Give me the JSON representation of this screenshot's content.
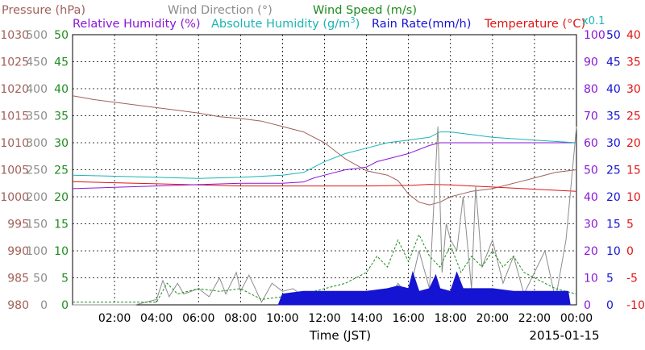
{
  "chart_data": {
    "type": "line",
    "title_parts": {
      "row1": [
        {
          "text": "Pressure (hPa)",
          "color": "#a0605a"
        },
        {
          "text": "Wind Direction (°)",
          "color": "#8c8c8c"
        },
        {
          "text": "Wind Speed (m/s)",
          "color": "#1e8c1e"
        }
      ],
      "row2": [
        {
          "text": "Relative Humidity (%)",
          "color": "#8a16d8"
        },
        {
          "text": "Absolute Humidity (g/m",
          "sup": "3",
          "tail": ")",
          "color": "#1ab4b4"
        },
        {
          "text": "Rain Rate(mm/h)",
          "color": "#1414d2"
        },
        {
          "text": "Temperature (°C)",
          "color": "#e01414"
        }
      ],
      "multiplier": {
        "text": "x0.1",
        "color": "#1ab4b4"
      }
    },
    "xlabel": "Time (JST)",
    "date": "2015-01-15",
    "x_ticks": [
      "02:00",
      "04:00",
      "06:00",
      "08:00",
      "10:00",
      "12:00",
      "14:00",
      "16:00",
      "18:00",
      "20:00",
      "22:00",
      "00:00"
    ],
    "xlim_hours": [
      0,
      24
    ],
    "grid": true,
    "axes": {
      "pressure": {
        "color": "#a0605a",
        "ticks": [
          "1030",
          "1025",
          "1020",
          "1015",
          "1010",
          "1005",
          "1000",
          "995",
          "990",
          "985",
          "980"
        ],
        "ylim": [
          980,
          1030
        ]
      },
      "wind_direction": {
        "color": "#8c8c8c",
        "ticks": [
          "500",
          "450",
          "400",
          "350",
          "300",
          "250",
          "200",
          "150",
          "100",
          "50",
          "0"
        ],
        "ylim": [
          0,
          500
        ]
      },
      "wind_speed": {
        "color": "#1e8c1e",
        "ticks": [
          "50",
          "45",
          "40",
          "35",
          "30",
          "25",
          "20",
          "15",
          "10",
          "5",
          "0"
        ],
        "ylim": [
          0,
          50
        ]
      },
      "relative_humidity": {
        "color": "#8a16d8",
        "ticks": [
          "100",
          "90",
          "80",
          "70",
          "60",
          "50",
          "40",
          "30",
          "20",
          "10",
          "0"
        ],
        "ylim": [
          0,
          100
        ]
      },
      "rain_rate": {
        "color": "#1414d2",
        "ticks": [
          "50",
          "45",
          "40",
          "35",
          "30",
          "25",
          "20",
          "15",
          "10",
          "5",
          "0"
        ],
        "ylim": [
          0,
          50
        ]
      },
      "temperature": {
        "color": "#e01414",
        "ticks": [
          "40",
          "35",
          "30",
          "25",
          "20",
          "15",
          "10",
          "5",
          "0",
          "-5",
          "-10"
        ],
        "ylim": [
          -10,
          40
        ]
      }
    },
    "series": [
      {
        "name": "Pressure (hPa)",
        "color": "#a0605a",
        "axis": "pressure",
        "x": [
          0,
          1,
          2,
          3,
          4,
          5,
          6,
          7,
          8,
          9,
          10,
          11,
          12,
          13,
          14,
          15,
          15.5,
          16,
          16.5,
          17,
          17.5,
          18,
          18.5,
          19,
          20,
          21,
          22,
          23,
          24
        ],
        "y": [
          1018.7,
          1018,
          1017.5,
          1017,
          1016.5,
          1016,
          1015.5,
          1014.8,
          1014.5,
          1014,
          1013,
          1012,
          1010,
          1007,
          1004.8,
          1004,
          1003,
          1000.5,
          999,
          998.5,
          999,
          1000,
          1000.5,
          1001,
          1001.5,
          1002.5,
          1003.5,
          1004.5,
          1005
        ]
      },
      {
        "name": "Temperature (°C)",
        "color": "#e01414",
        "axis": "temperature",
        "x": [
          0,
          2,
          4,
          6,
          8,
          10,
          12,
          14,
          16,
          17,
          18,
          19,
          20,
          22,
          24
        ],
        "y": [
          12.8,
          12.6,
          12.4,
          12.2,
          12,
          12,
          12,
          12,
          12.1,
          12.3,
          12.2,
          12,
          11.8,
          11.4,
          11
        ]
      },
      {
        "name": "Relative Humidity (%)",
        "color": "#8a16d8",
        "axis": "relative_humidity",
        "x": [
          0,
          2,
          4,
          6,
          8,
          10,
          11,
          11.5,
          12,
          13,
          14,
          14.5,
          15,
          16,
          17,
          17.5,
          18,
          19,
          20,
          22,
          24
        ],
        "y": [
          43,
          43.5,
          44,
          44.5,
          45,
          45,
          45.5,
          47,
          48,
          50,
          51,
          53,
          54,
          56,
          59,
          60,
          60,
          60,
          60,
          60,
          60
        ]
      },
      {
        "name": "Absolute Humidity",
        "color": "#1ab4b4",
        "axis": "pressure",
        "x": [
          0,
          2,
          4,
          6,
          8,
          10,
          11,
          11.5,
          12,
          13,
          14,
          15,
          16,
          17,
          17.5,
          18,
          19,
          20,
          22,
          24
        ],
        "y": [
          1004,
          1003.8,
          1003.6,
          1003.4,
          1003.6,
          1004,
          1004.5,
          1005.5,
          1006.5,
          1008,
          1009,
          1010,
          1010.5,
          1011,
          1012,
          1012,
          1011.5,
          1011,
          1010.5,
          1010
        ]
      },
      {
        "name": "Wind Direction (°)",
        "color": "#8c8c8c",
        "axis": "wind_direction",
        "x": [
          0,
          1,
          2,
          3,
          4,
          4.3,
          4.6,
          5,
          5.3,
          6,
          6.5,
          7,
          7.3,
          7.8,
          8,
          8.4,
          9,
          9.5,
          10,
          10.5,
          11,
          12,
          13,
          14,
          15,
          15.5,
          16,
          16.5,
          17,
          17.4,
          17.6,
          17.8,
          18,
          18.3,
          18.6,
          19,
          19.2,
          19.5,
          20,
          20.5,
          21,
          21.5,
          22,
          22.5,
          23,
          23.5,
          24
        ],
        "y": [
          0,
          0,
          0,
          0,
          10,
          45,
          15,
          40,
          20,
          30,
          15,
          50,
          20,
          60,
          25,
          55,
          5,
          40,
          25,
          30,
          15,
          20,
          10,
          20,
          5,
          40,
          15,
          100,
          30,
          330,
          60,
          150,
          120,
          100,
          200,
          30,
          220,
          70,
          120,
          40,
          90,
          20,
          60,
          100,
          10,
          120,
          330
        ]
      },
      {
        "name": "Wind Speed (m/s)",
        "color": "#1e8c1e",
        "axis": "wind_speed",
        "dashed": true,
        "x": [
          0,
          1,
          2,
          3,
          4,
          4.5,
          5,
          6,
          7,
          8,
          9,
          10,
          11,
          12,
          13,
          14,
          14.5,
          15,
          15.5,
          16,
          16.5,
          17,
          17.5,
          18,
          18.5,
          19,
          19.5,
          20,
          20.5,
          21,
          21.5,
          22,
          22.5,
          23,
          24
        ],
        "y": [
          0.5,
          0.5,
          0.5,
          0.5,
          0.5,
          4,
          2,
          3,
          2.5,
          3,
          1,
          1.5,
          2,
          3,
          4,
          6,
          9,
          7,
          12,
          8,
          13,
          9,
          7,
          11,
          6,
          9,
          7,
          10,
          7,
          9,
          6,
          5,
          4,
          3,
          2
        ]
      },
      {
        "name": "Rain Rate(mm/h)",
        "color": "#1414d2",
        "axis": "rain_rate",
        "fill": true,
        "x": [
          9.8,
          10,
          11,
          12,
          13,
          14,
          15,
          15.5,
          16,
          16.2,
          16.5,
          17,
          17.3,
          17.5,
          18,
          18.3,
          18.6,
          19,
          20,
          21,
          22,
          23,
          23.6,
          23.7
        ],
        "y": [
          0,
          2,
          2.5,
          2.5,
          2.5,
          2.5,
          3,
          3.5,
          3,
          6,
          2.5,
          3,
          5.5,
          3,
          2.5,
          6,
          3,
          3,
          3,
          2.5,
          2.5,
          2.5,
          2.5,
          0
        ]
      }
    ]
  }
}
